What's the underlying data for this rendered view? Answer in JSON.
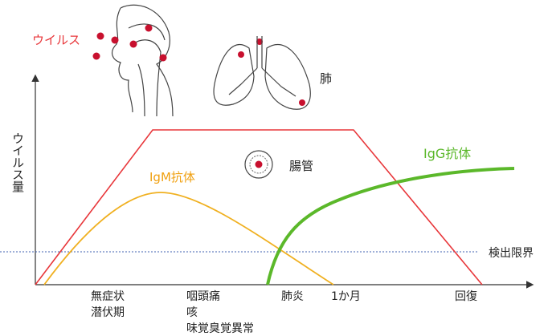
{
  "labels": {
    "virus": "ウイルス",
    "lung": "肺",
    "intestine": "腸管",
    "y_axis": "ウイルス量",
    "igm": "IgM抗体",
    "igg": "IgG抗体",
    "detection_limit": "検出限界"
  },
  "timeline": {
    "asymptomatic": "無症状",
    "incubation": "潜伏期",
    "sore_throat": "咽頭痛",
    "cough": "咳",
    "taste_smell": "味覚臭覚異常",
    "pneumonia": "肺炎",
    "one_month": "1か月",
    "recovery": "回復"
  }
}
